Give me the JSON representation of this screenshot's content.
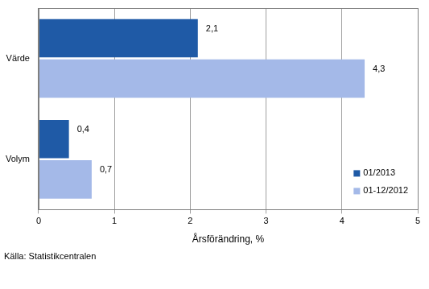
{
  "chart_data": {
    "type": "bar",
    "orientation": "horizontal",
    "categories": [
      "Värde",
      "Volym"
    ],
    "series": [
      {
        "name": "01/2013",
        "color": "#1f5aa6",
        "values": [
          2.1,
          0.4
        ],
        "value_labels": [
          "2,1",
          "0,4"
        ]
      },
      {
        "name": "01-12/2012",
        "color": "#a4b9e8",
        "values": [
          4.3,
          0.7
        ],
        "value_labels": [
          "4,3",
          "0,7"
        ]
      }
    ],
    "x_label": "Årsförändring, %",
    "xlim": [
      0,
      5
    ],
    "xticks": [
      0,
      1,
      2,
      3,
      4,
      5
    ],
    "grid": true,
    "legend": "lower right",
    "data_labels": true,
    "source": "Källa: Statistikcentralen"
  }
}
